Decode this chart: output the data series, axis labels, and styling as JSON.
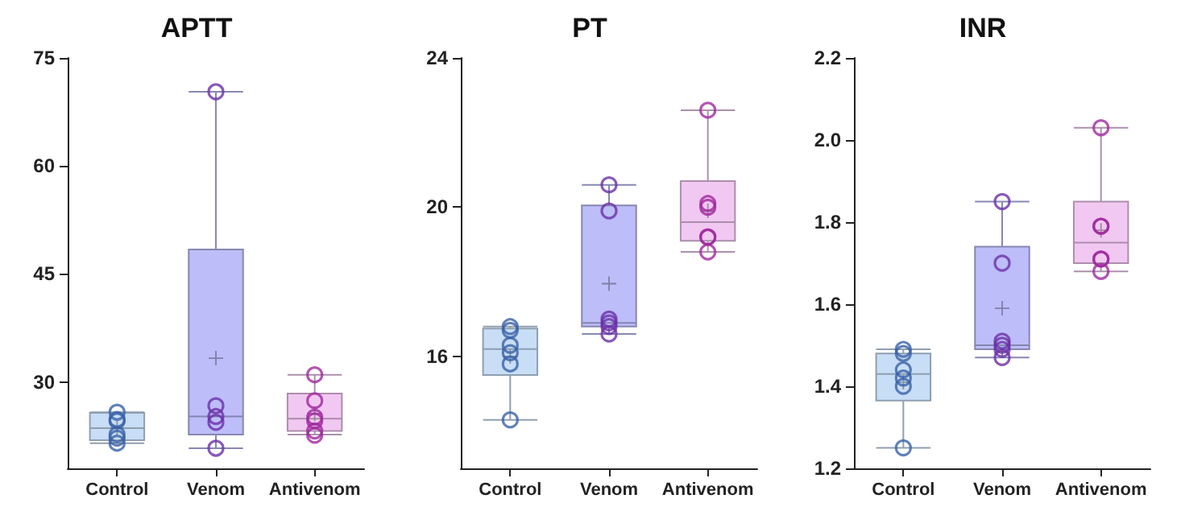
{
  "chart_data": [
    {
      "type": "box",
      "title": "APTT",
      "categories": [
        "Control",
        "Venom",
        "Antivenom"
      ],
      "ylim": [
        18,
        75
      ],
      "yticks": [
        30,
        45,
        60,
        75
      ],
      "grid": false,
      "marker": "circle",
      "series": [
        {
          "type": "box",
          "colors": [
            "#c5dcf5",
            "#b9b9f9",
            "#f0c5f0"
          ],
          "boxes": [
            {
              "low": 21.5,
              "q1": 21.9,
              "median": 23.6,
              "q3": 25.7,
              "high": 25.8,
              "mean": 23.6
            },
            {
              "low": 20.8,
              "q1": 22.7,
              "median": 25.2,
              "q3": 48.4,
              "high": 70.3,
              "mean": 33.3
            },
            {
              "low": 22.7,
              "q1": 23.2,
              "median": 24.9,
              "q3": 28.4,
              "high": 31.0,
              "mean": 25.6
            }
          ]
        },
        {
          "type": "scatter",
          "x": [
            "Control",
            "Control",
            "Control",
            "Control",
            "Control",
            "Control",
            "Venom",
            "Venom",
            "Venom",
            "Venom",
            "Venom",
            "Antivenom",
            "Antivenom",
            "Antivenom",
            "Antivenom",
            "Antivenom",
            "Antivenom"
          ],
          "values": [
            25.8,
            21.5,
            24.6,
            22.7,
            24.8,
            22.2,
            70.3,
            25.2,
            26.7,
            24.4,
            20.8,
            31.0,
            27.4,
            24.6,
            25.1,
            22.6,
            23.2
          ],
          "colors": [
            "#3a62a8",
            "#3a62a8",
            "#3a62a8",
            "#3a62a8",
            "#3a62a8",
            "#3a62a8",
            "#6a30a8",
            "#6a30a8",
            "#6a30a8",
            "#6a30a8",
            "#6a30a8",
            "#a0289f",
            "#a0289f",
            "#a0289f",
            "#a0289f",
            "#a0289f",
            "#a0289f"
          ]
        }
      ]
    },
    {
      "type": "box",
      "title": "PT",
      "categories": [
        "Control",
        "Venom",
        "Antivenom"
      ],
      "ylim": [
        13,
        24
      ],
      "yticks": [
        16,
        20,
        24
      ],
      "grid": false,
      "marker": "circle",
      "series": [
        {
          "type": "box",
          "colors": [
            "#c5dcf5",
            "#b9b9f9",
            "#f0c5f0"
          ],
          "boxes": [
            {
              "low": 14.3,
              "q1": 15.5,
              "median": 16.2,
              "q3": 16.75,
              "high": 16.8,
              "mean": 16.0
            },
            {
              "low": 16.6,
              "q1": 16.8,
              "median": 16.9,
              "q3": 20.05,
              "high": 20.6,
              "mean": 17.95
            },
            {
              "low": 18.8,
              "q1": 19.1,
              "median": 19.6,
              "q3": 20.7,
              "high": 22.6,
              "mean": 19.9
            }
          ]
        },
        {
          "type": "scatter",
          "x": [
            "Control",
            "Control",
            "Control",
            "Control",
            "Control",
            "Control",
            "Venom",
            "Venom",
            "Venom",
            "Venom",
            "Venom",
            "Venom",
            "Antivenom",
            "Antivenom",
            "Antivenom",
            "Antivenom",
            "Antivenom",
            "Antivenom"
          ],
          "values": [
            16.7,
            16.8,
            16.3,
            16.1,
            15.8,
            14.3,
            20.6,
            19.9,
            17.0,
            16.9,
            16.8,
            16.6,
            22.6,
            20.1,
            20.0,
            19.2,
            19.2,
            18.8
          ],
          "colors": [
            "#3a62a8",
            "#3a62a8",
            "#3a62a8",
            "#3a62a8",
            "#3a62a8",
            "#3a62a8",
            "#6a30a8",
            "#6a30a8",
            "#6a30a8",
            "#6a30a8",
            "#6a30a8",
            "#6a30a8",
            "#a0289f",
            "#a0289f",
            "#a0289f",
            "#a0289f",
            "#a0289f",
            "#a0289f"
          ]
        }
      ]
    },
    {
      "type": "box",
      "title": "INR",
      "categories": [
        "Control",
        "Venom",
        "Antivenom"
      ],
      "ylim": [
        1.2,
        2.2
      ],
      "yticks": [
        1.2,
        1.4,
        1.6,
        1.8,
        {
          "value": 2,
          "label": "2.0"
        },
        2.2
      ],
      "grid": false,
      "marker": "circle",
      "series": [
        {
          "type": "box",
          "colors": [
            "#c5dcf5",
            "#b9b9f9",
            "#f0c5f0"
          ],
          "boxes": [
            {
              "low": 1.25,
              "q1": 1.365,
              "median": 1.43,
              "q3": 1.48,
              "high": 1.49,
              "mean": 1.41
            },
            {
              "low": 1.47,
              "q1": 1.49,
              "median": 1.5,
              "q3": 1.74,
              "high": 1.85,
              "mean": 1.59
            },
            {
              "low": 1.68,
              "q1": 1.7,
              "median": 1.75,
              "q3": 1.85,
              "high": 2.03,
              "mean": 1.78
            }
          ]
        },
        {
          "type": "scatter",
          "x": [
            "Control",
            "Control",
            "Control",
            "Control",
            "Control",
            "Control",
            "Venom",
            "Venom",
            "Venom",
            "Venom",
            "Venom",
            "Venom",
            "Antivenom",
            "Antivenom",
            "Antivenom",
            "Antivenom",
            "Antivenom",
            "Antivenom"
          ],
          "values": [
            1.49,
            1.48,
            1.44,
            1.42,
            1.4,
            1.25,
            1.85,
            1.7,
            1.51,
            1.5,
            1.49,
            1.47,
            2.03,
            1.79,
            1.79,
            1.71,
            1.71,
            1.68
          ],
          "colors": [
            "#3a62a8",
            "#3a62a8",
            "#3a62a8",
            "#3a62a8",
            "#3a62a8",
            "#3a62a8",
            "#6a30a8",
            "#6a30a8",
            "#6a30a8",
            "#6a30a8",
            "#6a30a8",
            "#6a30a8",
            "#a0289f",
            "#a0289f",
            "#a0289f",
            "#a0289f",
            "#a0289f",
            "#a0289f"
          ]
        }
      ]
    }
  ]
}
